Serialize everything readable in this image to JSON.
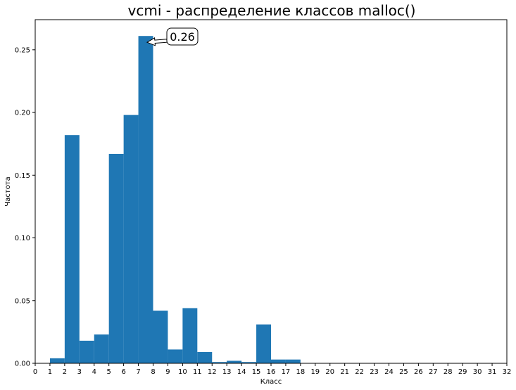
{
  "chart_data": {
    "type": "bar",
    "title": "vcmi - распределение классов malloc()",
    "xlabel": "Класс",
    "ylabel": "Частота",
    "xlim": [
      0,
      32
    ],
    "ylim": [
      0,
      0.274
    ],
    "x_ticks": [
      "0",
      "1",
      "2",
      "3",
      "4",
      "5",
      "6",
      "7",
      "8",
      "9",
      "10",
      "11",
      "12",
      "13",
      "14",
      "15",
      "16",
      "17",
      "18",
      "19",
      "20",
      "21",
      "22",
      "23",
      "24",
      "25",
      "26",
      "27",
      "28",
      "29",
      "30",
      "31",
      "32"
    ],
    "y_ticks": [
      "0.00",
      "0.05",
      "0.10",
      "0.15",
      "0.20",
      "0.25"
    ],
    "y_tick_values": [
      0,
      0.05,
      0.1,
      0.15,
      0.2,
      0.25
    ],
    "bin_edges": [
      1,
      2,
      3,
      4,
      5,
      6,
      7,
      8,
      9,
      10,
      11,
      12,
      13,
      14,
      15,
      16,
      17,
      18
    ],
    "values": [
      0.004,
      0.182,
      0.018,
      0.023,
      0.167,
      0.198,
      0.261,
      0.042,
      0.011,
      0.044,
      0.009,
      0.001,
      0.002,
      0.001,
      0.031,
      0.003,
      0.003
    ],
    "bar_color": "#1f77b4",
    "grid": false,
    "annotation": {
      "text": "0.26",
      "x": 7.5,
      "y": 0.261
    }
  }
}
